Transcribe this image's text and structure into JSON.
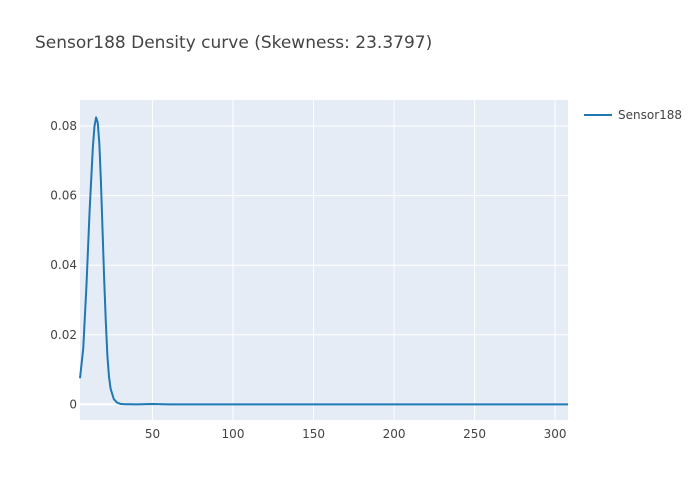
{
  "chart_data": {
    "type": "line",
    "title": "Sensor188 Density curve (Skewness: 23.3797)",
    "xlabel": "",
    "ylabel": "",
    "xlim": [
      5,
      308
    ],
    "ylim": [
      -0.0045,
      0.0875
    ],
    "x_ticks": [
      50,
      100,
      150,
      200,
      250,
      300
    ],
    "y_ticks": [
      0,
      0.02,
      0.04,
      0.06,
      0.08
    ],
    "y_tick_labels": [
      "0",
      "0.02",
      "0.04",
      "0.06",
      "0.08"
    ],
    "grid": true,
    "legend_position": "top-right",
    "colors": {
      "plot_bg": "#e5ecf6",
      "grid": "#ffffff",
      "series": "#1f77b4"
    },
    "series": [
      {
        "name": "Sensor188",
        "x": [
          5,
          7,
          9,
          11,
          13,
          14,
          15,
          16,
          17,
          18,
          19,
          20,
          21,
          22,
          23,
          24,
          26,
          28,
          30,
          32,
          34,
          36,
          40,
          50,
          60,
          80,
          100,
          150,
          200,
          250,
          300,
          308
        ],
        "y": [
          0.0075,
          0.016,
          0.034,
          0.056,
          0.074,
          0.08,
          0.0825,
          0.081,
          0.075,
          0.064,
          0.05,
          0.036,
          0.024,
          0.014,
          0.008,
          0.0045,
          0.0015,
          0.0005,
          0.00015,
          5e-05,
          2e-05,
          1e-05,
          0,
          0.0001,
          0,
          0,
          0,
          0,
          0,
          0,
          0,
          0
        ]
      }
    ]
  }
}
